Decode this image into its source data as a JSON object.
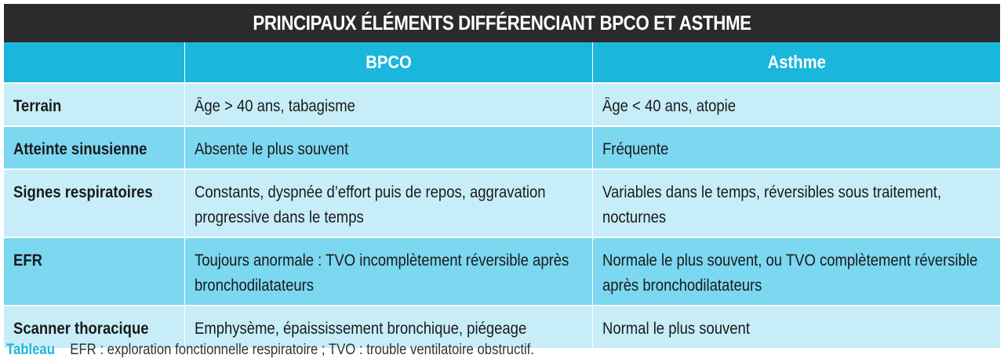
{
  "title": "PRINCIPAUX ÉLÉMENTS DIFFÉRENCIANT BPCO ET ASTHME",
  "table": {
    "columns": [
      "",
      "BPCO",
      "Asthme"
    ],
    "rows": [
      {
        "label": "Terrain",
        "bpco": "Âge > 40 ans, tabagisme",
        "asthme": "Âge < 40 ans, atopie"
      },
      {
        "label": "Atteinte sinusienne",
        "bpco": "Absente le plus souvent",
        "asthme": "Fréquente"
      },
      {
        "label": "Signes respiratoires",
        "bpco": "Constants, dyspnée d’effort puis de repos, aggravation progressive dans le temps",
        "asthme": "Variables dans le temps, réversibles sous traitement, nocturnes"
      },
      {
        "label": "EFR",
        "bpco": "Toujours anormale : TVO incomplètement réversible après bronchodilatateurs",
        "asthme": "Normale le plus souvent, ou TVO complètement réversible après bronchodilatateurs"
      },
      {
        "label": "Scanner thoracique",
        "bpco": "Emphysème, épaississement bronchique, piégeage",
        "asthme": "Normal le plus souvent"
      }
    ]
  },
  "caption": {
    "label": "Tableau",
    "text": "EFR : exploration fonctionnelle respiratoire ; TVO : trouble ventilatoire obstructif."
  },
  "colors": {
    "header_bg": "#2b2b2d",
    "column_header_bg": "#1bb6dc",
    "row_light": "#c7eef8",
    "row_dark": "#7cd7f0",
    "caption_label": "#1bb6dc"
  }
}
